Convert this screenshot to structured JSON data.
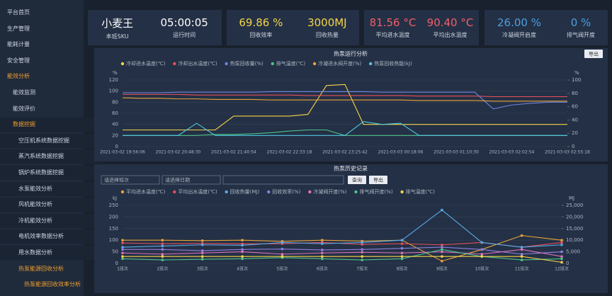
{
  "sidebar": {
    "items": [
      {
        "label": "平台首页",
        "level": 0
      },
      {
        "label": "生产管理",
        "level": 0
      },
      {
        "label": "能耗计量",
        "level": 0
      },
      {
        "label": "安全管理",
        "level": 0
      },
      {
        "label": "能效分析",
        "level": 0,
        "active": true
      },
      {
        "label": "能效监测",
        "level": 1
      },
      {
        "label": "能效评价",
        "level": 1
      },
      {
        "label": "数据挖掘",
        "level": 1,
        "active": true
      },
      {
        "label": "空压机系统数据挖掘",
        "level": 2
      },
      {
        "label": "蒸汽系统数据挖掘",
        "level": 2
      },
      {
        "label": "锅炉系统数据挖掘",
        "level": 2
      },
      {
        "label": "水泵能效分析",
        "level": 2
      },
      {
        "label": "风机能效分析",
        "level": 2
      },
      {
        "label": "冷机能效分析",
        "level": 2
      },
      {
        "label": "电机效率数据分析",
        "level": 2
      },
      {
        "label": "用水数据分析",
        "level": 2
      },
      {
        "label": "热泵能源回收分析",
        "level": 2,
        "active": true
      },
      {
        "label": "热泵能源回收效率分析",
        "level": 3,
        "active": true
      }
    ]
  },
  "cards": [
    {
      "items": [
        {
          "value": "小麦王",
          "label": "本班SKU",
          "color": "#ffffff"
        },
        {
          "value": "05:00:05",
          "label": "运行时间",
          "color": "#ffffff"
        }
      ]
    },
    {
      "items": [
        {
          "value": "69.86 %",
          "label": "回收效率",
          "color": "#f5d547"
        },
        {
          "value": "3000MJ",
          "label": "回收热量",
          "color": "#f5d547"
        }
      ]
    },
    {
      "items": [
        {
          "value": "81.56 °C",
          "label": "平均进水温度",
          "color": "#f0606a"
        },
        {
          "value": "90.40 °C",
          "label": "平均出水温度",
          "color": "#f0606a"
        }
      ]
    },
    {
      "items": [
        {
          "value": "26.00 %",
          "label": "冷凝阀开启度",
          "color": "#4a9fe0"
        },
        {
          "value": "0 %",
          "label": "排气阀开度",
          "color": "#4a9fe0"
        }
      ]
    }
  ],
  "charts": [
    {
      "type": "line",
      "title": "热泵运行分析",
      "button": "导出",
      "ylabel": "%",
      "y2label": "%",
      "markers": false,
      "categories": [
        "2021-03-02 19:56:06",
        null,
        null,
        "2021-03-02 20:48:30",
        null,
        null,
        "2021-03-02 21:40:54",
        null,
        null,
        "2021-03-02 22:33:18",
        null,
        null,
        "2021-03-02 23:25:42",
        null,
        null,
        "2021-03-03 00:18:06",
        null,
        null,
        "2021-03-03 01:10:30",
        null,
        null,
        "2021-03-03 02:02:54",
        null,
        null,
        "2021-03-03 02:55:18"
      ],
      "ylim": [
        0,
        120
      ],
      "yticks": [
        0,
        20,
        40,
        60,
        80,
        100,
        120
      ],
      "y2lim": [
        0,
        100
      ],
      "y2ticks": [
        0,
        20,
        40,
        60,
        80,
        100
      ],
      "series": [
        {
          "name": "冷却进水温度(℃)",
          "color": "#f5d547",
          "values": [
            30,
            30,
            30,
            30,
            30,
            30,
            55,
            55,
            55,
            55,
            58,
            110,
            112,
            40,
            40,
            40,
            40,
            40,
            40,
            40,
            40,
            40,
            40,
            40,
            40
          ]
        },
        {
          "name": "冷却出水温度(℃)",
          "color": "#e8505b",
          "values": [
            94,
            94,
            94,
            94,
            93,
            93,
            93,
            93,
            93,
            93,
            92,
            92,
            92,
            92,
            92,
            92,
            91,
            91,
            91,
            91,
            90,
            90,
            90,
            90,
            90
          ]
        },
        {
          "name": "热泵回收量(%)",
          "color": "#6d84e0",
          "values": [
            97,
            97,
            97,
            98,
            98,
            98,
            98,
            98,
            99,
            99,
            99,
            99,
            99,
            99,
            98,
            98,
            98,
            98,
            98,
            98,
            68,
            75,
            78,
            80,
            80
          ]
        },
        {
          "name": "排气温度(℃)",
          "color": "#4cc38a",
          "values": [
            20,
            20,
            20,
            20,
            20,
            22,
            22,
            23,
            25,
            28,
            30,
            30,
            20,
            20,
            20,
            20,
            20,
            20,
            20,
            20,
            20,
            20,
            20,
            20,
            20
          ]
        },
        {
          "name": "冷凝进水阀开度(%)",
          "color": "#e8a33a",
          "values": [
            88,
            87,
            87,
            86,
            86,
            85,
            85,
            85,
            84,
            84,
            84,
            84,
            84,
            84,
            84,
            84,
            83,
            83,
            83,
            83,
            82,
            82,
            82,
            82,
            82
          ]
        },
        {
          "name": "热泵回收热能(kJ)",
          "color": "#4fc9e0",
          "values": [
            20,
            20,
            20,
            20,
            42,
            20,
            20,
            20,
            20,
            20,
            20,
            20,
            20,
            45,
            40,
            42,
            20,
            20,
            20,
            20,
            20,
            20,
            20,
            20,
            20
          ]
        }
      ]
    },
    {
      "type": "line",
      "title": "热泵历史记录",
      "selects": [
        "请选择班次",
        "请选择日期"
      ],
      "buttons": [
        "查询",
        "导出"
      ],
      "ylabel": "kJ",
      "y2label": "MJ",
      "markers": true,
      "categories": [
        "1班次",
        "2班次",
        "3班次",
        "4班次",
        "5班次",
        "6班次",
        "7班次",
        "8班次",
        "9班次",
        "10班次",
        "11班次",
        "12班次"
      ],
      "ylim": [
        0,
        250
      ],
      "yticks": [
        0,
        50,
        100,
        150,
        200,
        250
      ],
      "y2lim": [
        0,
        25000
      ],
      "y2ticks": [
        {
          "value": 0,
          "label": "0"
        },
        {
          "value": 5000,
          "label": "5,000"
        },
        {
          "value": 10000,
          "label": "10,000"
        },
        {
          "value": 15000,
          "label": "15,000"
        },
        {
          "value": 20000,
          "label": "20,000"
        },
        {
          "value": 25000,
          "label": "25,000"
        }
      ],
      "series": [
        {
          "name": "平均进水温度(℃)",
          "color": "#e8a33a",
          "values": [
            100,
            100,
            98,
            100,
            95,
            100,
            96,
            100,
            10,
            60,
            120,
            100
          ]
        },
        {
          "name": "平均出水温度(℃)",
          "color": "#e8505b",
          "values": [
            88,
            85,
            86,
            84,
            85,
            90,
            82,
            85,
            80,
            90,
            70,
            90
          ]
        },
        {
          "name": "回收热量(MJ)",
          "color": "#5aa9e6",
          "axis": "y2",
          "values": [
            7000,
            7500,
            8000,
            7800,
            9000,
            8500,
            9000,
            10000,
            23000,
            9000,
            7000,
            8000
          ]
        },
        {
          "name": "回收效率(%)",
          "color": "#8f7fe0",
          "values": [
            60,
            60,
            55,
            60,
            62,
            58,
            60,
            65,
            70,
            60,
            40,
            50
          ]
        },
        {
          "name": "冷凝阀开度(%)",
          "color": "#e070c0",
          "values": [
            45,
            40,
            45,
            50,
            40,
            45,
            48,
            45,
            50,
            40,
            60,
            30
          ]
        },
        {
          "name": "排气阀开度(%)",
          "color": "#4cc38a",
          "values": [
            20,
            15,
            18,
            20,
            25,
            20,
            15,
            20,
            60,
            30,
            15,
            20
          ]
        },
        {
          "name": "排气温度(℃)",
          "color": "#f5d547",
          "values": [
            30,
            30,
            30,
            30,
            30,
            30,
            30,
            30,
            30,
            30,
            30,
            5
          ]
        }
      ]
    }
  ]
}
